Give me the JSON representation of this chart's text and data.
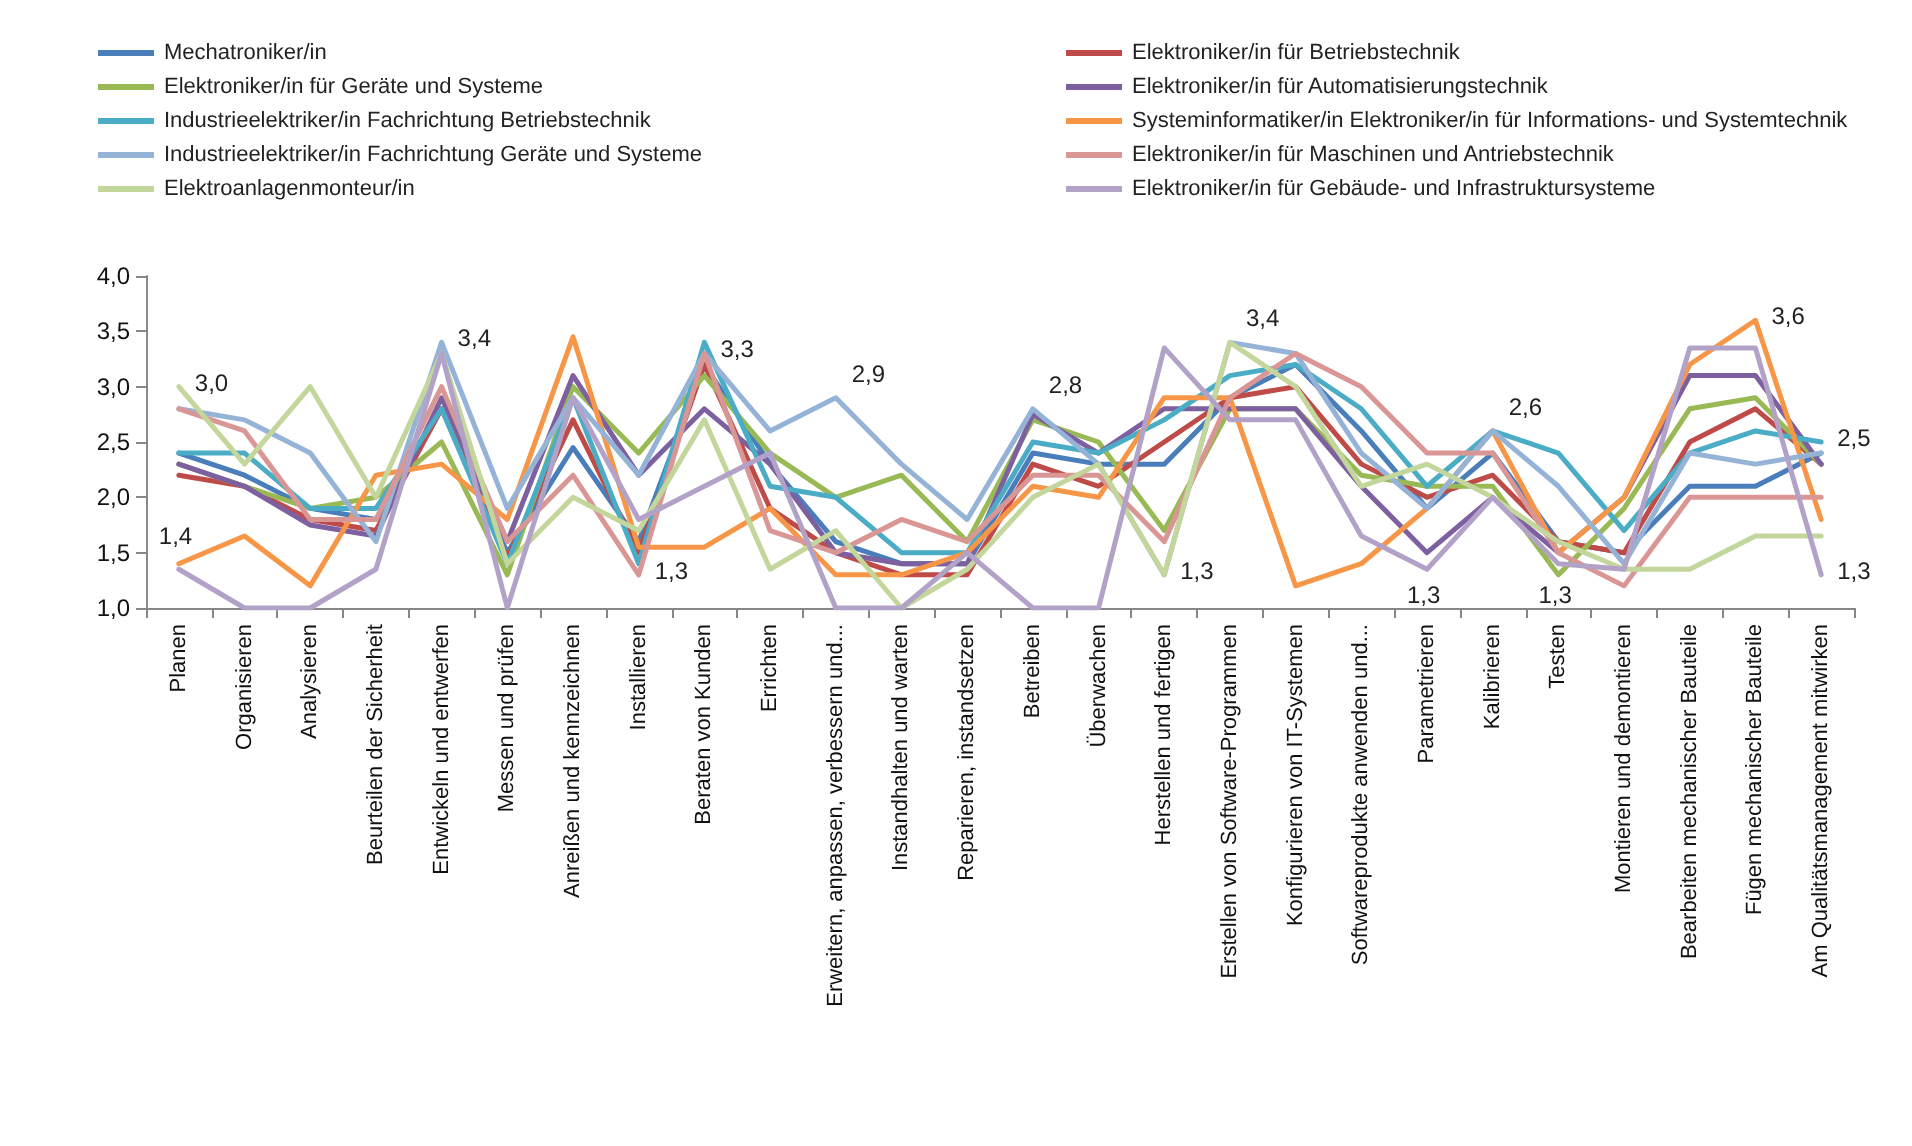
{
  "chart_data": {
    "type": "line",
    "categories": [
      "Planen",
      "Organisieren",
      "Analysieren",
      "Beurteilen der Sicherheit",
      "Entwickeln und entwerfen",
      "Messen und prüfen",
      "Anreißen und kennzeichnen",
      "Installieren",
      "Beraten von Kunden",
      "Errichten",
      "Erweitern, anpassen, verbessern und...",
      "Instandhalten und warten",
      "Reparieren, instandsetzen",
      "Betreiben",
      "Überwachen",
      "Herstellen und fertigen",
      "Erstellen von Software-Programmen",
      "Konfigurieren von IT-Systemen",
      "Softwareprodukte anwenden und...",
      "Parametrieren",
      "Kalibrieren",
      "Testen",
      "Montieren und demontieren",
      "Bearbeiten mechanischer Bauteile",
      "Fügen mechanischer Bauteile",
      "Am Qualitätsmanagement mitwirken"
    ],
    "series": [
      {
        "name": "Mechatroniker/in",
        "color": "#4a7ebb",
        "values": [
          2.4,
          2.2,
          1.9,
          1.8,
          2.8,
          1.5,
          2.45,
          1.6,
          3.2,
          2.3,
          1.6,
          1.4,
          1.4,
          2.4,
          2.3,
          2.3,
          2.9,
          3.2,
          2.6,
          1.9,
          2.4,
          1.6,
          1.5,
          2.1,
          2.1,
          2.4
        ]
      },
      {
        "name": "Elektroniker/in für Betriebstechnik",
        "color": "#be4b48",
        "values": [
          2.2,
          2.1,
          1.8,
          1.7,
          2.8,
          1.45,
          2.7,
          1.5,
          3.2,
          1.9,
          1.5,
          1.3,
          1.3,
          2.3,
          2.1,
          2.5,
          2.9,
          3.0,
          2.3,
          2.0,
          2.2,
          1.6,
          1.5,
          2.5,
          2.8,
          2.3
        ]
      },
      {
        "name": "Elektroniker/in für Geräte und Systeme",
        "color": "#98b954",
        "values": [
          2.3,
          2.1,
          1.9,
          2.0,
          2.5,
          1.3,
          3.0,
          2.4,
          3.1,
          2.4,
          2.0,
          2.2,
          1.6,
          2.7,
          2.5,
          1.7,
          2.8,
          2.8,
          2.2,
          2.1,
          2.1,
          1.3,
          1.9,
          2.8,
          2.9,
          2.3
        ]
      },
      {
        "name": "Elektroniker/in für Automatisierungstechnik",
        "color": "#7d60a0",
        "values": [
          2.3,
          2.1,
          1.75,
          1.65,
          2.9,
          1.6,
          3.1,
          2.2,
          2.8,
          2.3,
          1.5,
          1.4,
          1.4,
          2.75,
          2.4,
          2.8,
          2.8,
          2.8,
          2.1,
          1.5,
          2.0,
          1.5,
          2.0,
          3.1,
          3.1,
          2.3
        ]
      },
      {
        "name": "Industrieelektriker/in Fachrichtung Betriebstechnik",
        "color": "#4bacc6",
        "values": [
          2.4,
          2.4,
          1.9,
          1.9,
          2.8,
          1.4,
          2.9,
          1.4,
          3.4,
          2.1,
          2.0,
          1.5,
          1.5,
          2.5,
          2.4,
          2.7,
          3.1,
          3.2,
          2.8,
          2.1,
          2.6,
          2.4,
          1.7,
          2.4,
          2.6,
          2.5
        ]
      },
      {
        "name": "Systeminformatiker/in Elektroniker/in für Informations- und Systemtechnik",
        "color": "#f79646",
        "values": [
          1.4,
          1.65,
          1.2,
          2.2,
          2.3,
          1.8,
          3.45,
          1.55,
          1.55,
          1.9,
          1.3,
          1.3,
          1.5,
          2.1,
          2.0,
          2.9,
          2.9,
          1.2,
          1.4,
          1.9,
          2.6,
          1.5,
          2.0,
          3.2,
          3.6,
          1.8
        ]
      },
      {
        "name": "Industrieelektriker/in Fachrichtung Geräte und Systeme",
        "color": "#95b3d7",
        "values": [
          2.8,
          2.7,
          2.4,
          1.6,
          3.4,
          1.9,
          2.9,
          2.2,
          3.3,
          2.6,
          2.9,
          2.3,
          1.8,
          2.8,
          2.3,
          1.3,
          3.4,
          3.3,
          2.4,
          1.9,
          2.6,
          2.1,
          1.4,
          2.4,
          2.3,
          2.4
        ]
      },
      {
        "name": "Elektroniker/in für Maschinen und Antriebstechnik",
        "color": "#d99694",
        "values": [
          2.8,
          2.6,
          1.8,
          1.8,
          3.0,
          1.6,
          2.2,
          1.3,
          3.3,
          1.7,
          1.5,
          1.8,
          1.6,
          2.2,
          2.2,
          1.6,
          2.9,
          3.3,
          3.0,
          2.4,
          2.4,
          1.5,
          1.2,
          2.0,
          2.0,
          2.0
        ]
      },
      {
        "name": "Elektroanlagenmonteur/in",
        "color": "#c3d69b",
        "values": [
          3.0,
          2.3,
          3.0,
          2.0,
          3.3,
          1.4,
          2.0,
          1.7,
          2.7,
          1.35,
          1.7,
          1.0,
          1.35,
          2.0,
          2.3,
          1.3,
          3.4,
          3.0,
          2.1,
          2.3,
          2.0,
          1.6,
          1.35,
          1.35,
          1.65,
          1.65
        ]
      },
      {
        "name": "Elektroniker/in für Gebäude- und Infrastruktursysteme",
        "color": "#b3a2c7",
        "values": [
          1.35,
          1.0,
          1.0,
          1.35,
          3.3,
          1.0,
          2.9,
          1.8,
          2.1,
          2.4,
          1.0,
          1.0,
          1.5,
          1.0,
          1.0,
          3.35,
          2.7,
          2.7,
          1.65,
          1.35,
          2.0,
          1.4,
          1.35,
          3.35,
          3.35,
          1.3
        ]
      }
    ],
    "ylim": [
      1,
      4
    ],
    "yticks": [
      {
        "value": 1,
        "label": "1,0"
      },
      {
        "value": 1.5,
        "label": "1,5"
      },
      {
        "value": 2,
        "label": "2,0"
      },
      {
        "value": 2.5,
        "label": "2,5"
      },
      {
        "value": 3,
        "label": "3,0"
      },
      {
        "value": 3.5,
        "label": "3,5"
      },
      {
        "value": 4,
        "label": "4,0"
      }
    ],
    "grid": false,
    "legend": "top",
    "annotations": [
      {
        "text": "3,0",
        "x": "Planen",
        "y": 3.0
      },
      {
        "text": "1,4",
        "x": "Planen",
        "y": 1.4
      },
      {
        "text": "3,4",
        "x": "Entwickeln und entwerfen",
        "y": 3.4
      },
      {
        "text": "1,3",
        "x": "Installieren",
        "y": 1.3
      },
      {
        "text": "3,3",
        "x": "Beraten von Kunden",
        "y": 3.3
      },
      {
        "text": "2,9",
        "x": "Erweitern, anpassen, verbessern und...",
        "y": 2.9
      },
      {
        "text": "2,8",
        "x": "Betreiben",
        "y": 2.8
      },
      {
        "text": "1,3",
        "x": "Herstellen und fertigen",
        "y": 1.3
      },
      {
        "text": "3,4",
        "x": "Erstellen von Software-Programmen",
        "y": 3.4
      },
      {
        "text": "1,3",
        "x": "Parametrieren",
        "y": 1.3
      },
      {
        "text": "2,6",
        "x": "Kalibrieren",
        "y": 2.6
      },
      {
        "text": "1,3",
        "x": "Testen",
        "y": 1.3
      },
      {
        "text": "3,6",
        "x": "Fügen mechanischer Bauteile",
        "y": 3.6
      },
      {
        "text": "2,5",
        "x": "Am Qualitätsmanagement mitwirken",
        "y": 2.5
      },
      {
        "text": "1,3",
        "x": "Am Qualitätsmanagement mitwirken",
        "y": 1.3
      }
    ]
  }
}
